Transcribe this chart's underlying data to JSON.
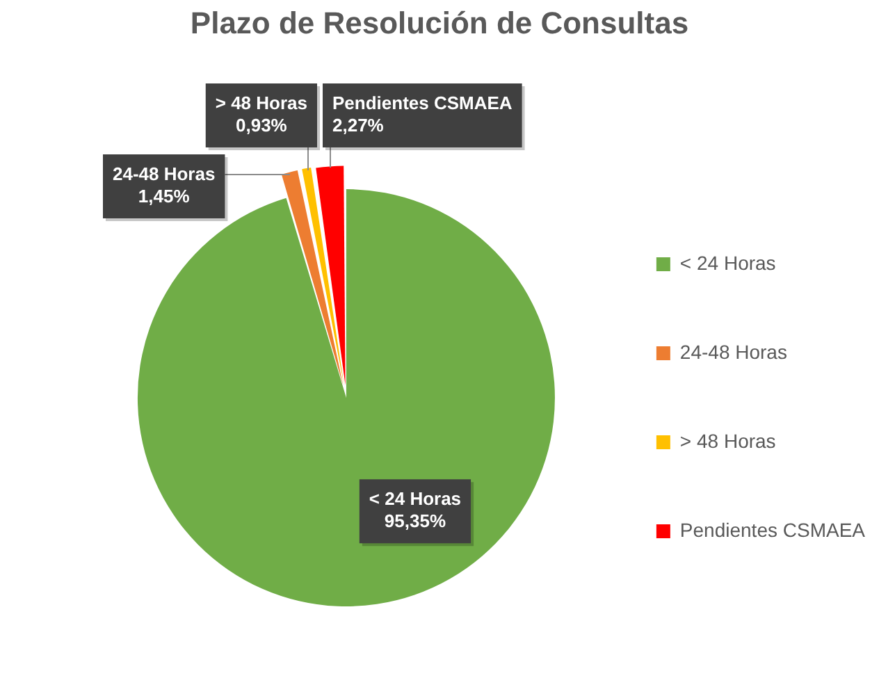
{
  "chart_data": {
    "type": "pie",
    "title": "Plazo de Resolución de Consultas",
    "categories": [
      "< 24 Horas",
      "24-48 Horas",
      "> 48 Horas",
      "Pendientes CSMAEA"
    ],
    "values": [
      95.35,
      1.45,
      0.93,
      2.27
    ],
    "colors": [
      "#70ad47",
      "#ed7d31",
      "#ffc000",
      "#ff0000"
    ],
    "value_labels": [
      "95,35%",
      "1,45%",
      "0,93%",
      "2,27%"
    ],
    "legend": "right"
  }
}
